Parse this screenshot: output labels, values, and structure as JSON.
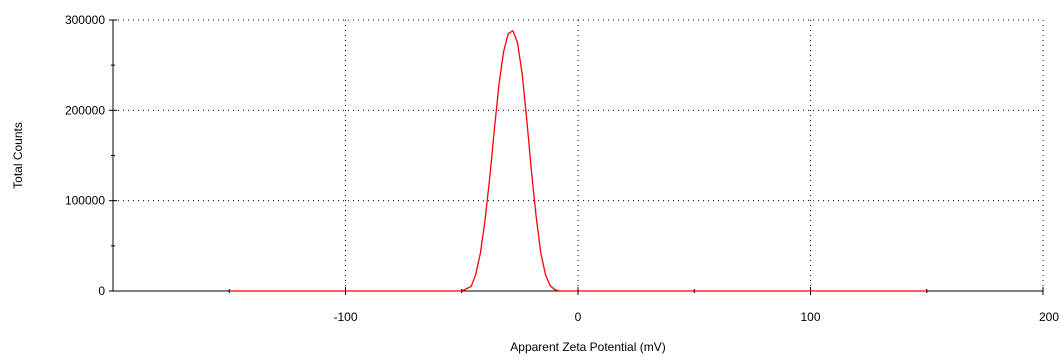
{
  "chart_data": {
    "type": "line",
    "title": "",
    "xlabel": "Apparent Zeta Potential (mV)",
    "ylabel": "Total Counts",
    "xlim": [
      -200,
      200
    ],
    "ylim": [
      0,
      300000
    ],
    "x_ticks": [
      -100,
      0,
      100,
      200
    ],
    "x_tick_labels": [
      "-100",
      "0",
      "100",
      "200"
    ],
    "x_minor_ticks": [
      -150,
      -50,
      50,
      150
    ],
    "y_ticks": [
      0,
      100000,
      200000,
      300000
    ],
    "y_tick_labels": [
      "0",
      "100000",
      "200000",
      "300000"
    ],
    "y_minor_ticks": [
      50000,
      150000,
      250000
    ],
    "grid": true,
    "grid_style": "dotted",
    "series": [
      {
        "color": "#ff0000",
        "x": [
          -150,
          -50,
          -46,
          -44,
          -42,
          -40,
          -38,
          -36,
          -34,
          -32,
          -30,
          -28,
          -26,
          -24,
          -22,
          -20,
          -18,
          -16,
          -14,
          -12,
          -10,
          -8,
          150
        ],
        "y": [
          0,
          0,
          5000,
          18000,
          42000,
          78000,
          125000,
          178000,
          228000,
          265000,
          285000,
          288000,
          275000,
          240000,
          188000,
          132000,
          82000,
          42000,
          18000,
          6000,
          1500,
          0,
          0
        ]
      }
    ]
  }
}
